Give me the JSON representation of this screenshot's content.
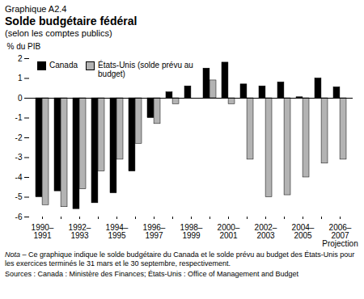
{
  "chart_data": {
    "type": "bar",
    "header": "Graphique A2.4",
    "title": "Solde budgétaire fédéral",
    "subtitle": "(selon les comptes publics)",
    "y_label": "% du PIB",
    "categories": [
      "1990–1991",
      null,
      "1992–1993",
      null,
      "1994–1995",
      null,
      "1996–1997",
      null,
      "1998–1999",
      null,
      "2000–2001",
      null,
      "2002–2003",
      null,
      "2004–2005",
      null,
      "2006–2007 Projection"
    ],
    "series": [
      {
        "name": "Canada",
        "color": "#000000",
        "values": [
          -5.0,
          -4.7,
          -5.6,
          -5.3,
          -4.8,
          -3.7,
          -1.0,
          0.3,
          0.6,
          1.5,
          1.8,
          0.7,
          0.6,
          0.8,
          0.05,
          1.0,
          0.55
        ]
      },
      {
        "name": "États-Unis (solde prévu au budget)",
        "color": "#b3b3b3",
        "values": [
          -5.4,
          -5.5,
          -4.6,
          -3.7,
          -3.1,
          -2.3,
          -1.3,
          -0.3,
          0.0,
          0.9,
          -0.3,
          -3.1,
          -5.0,
          -4.9,
          -4.0,
          -3.3,
          -3.1
        ]
      }
    ],
    "ylim": [
      -6,
      2
    ],
    "yticks": [
      -6,
      -5,
      -4,
      -3,
      -2,
      -1,
      0,
      1,
      2
    ],
    "grid": false,
    "legend": "top-left",
    "note": "Nota – Ce graphique indique le solde budgétaire du Canada et le solde prévu au budget des États-Unis pour les exercices terminés le 31 mars et le 30 septembre, respectivement.",
    "sources": "Sources : Canada : Ministère des Finances; États-Unis : Office of Management and Budget"
  }
}
